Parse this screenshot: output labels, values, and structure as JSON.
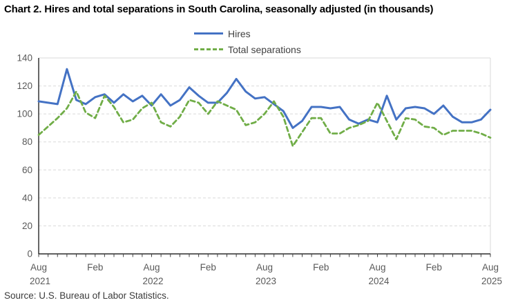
{
  "chart_data": {
    "type": "line",
    "title": "Chart 2. Hires and total separations in South Carolina, seasonally adjusted (in thousands)",
    "source": "Source: U.S. Bureau of Labor Statistics.",
    "ylim": [
      0,
      140
    ],
    "yticks": [
      0,
      20,
      40,
      60,
      80,
      100,
      120,
      140
    ],
    "grid": "horizontal-dashed",
    "legend_position": "top-center",
    "x": [
      "Aug 2021",
      "Sep 2021",
      "Oct 2021",
      "Nov 2021",
      "Dec 2021",
      "Jan 2022",
      "Feb 2022",
      "Mar 2022",
      "Apr 2022",
      "May 2022",
      "Jun 2022",
      "Jul 2022",
      "Aug 2022",
      "Sep 2022",
      "Oct 2022",
      "Nov 2022",
      "Dec 2022",
      "Jan 2023",
      "Feb 2023",
      "Mar 2023",
      "Apr 2023",
      "May 2023",
      "Jun 2023",
      "Jul 2023",
      "Aug 2023",
      "Sep 2023",
      "Oct 2023",
      "Nov 2023",
      "Dec 2023",
      "Jan 2024",
      "Feb 2024",
      "Mar 2024",
      "Apr 2024",
      "May 2024",
      "Jun 2024",
      "Jul 2024",
      "Aug 2024",
      "Sep 2024",
      "Oct 2024",
      "Nov 2024",
      "Dec 2024",
      "Jan 2025",
      "Feb 2025",
      "Mar 2025",
      "Apr 2025",
      "May 2025",
      "Jun 2025",
      "Jul 2025",
      "Aug 2025"
    ],
    "x_ticks_labeled": [
      {
        "month_index": 0,
        "label": "Aug",
        "year": "2021"
      },
      {
        "month_index": 6,
        "label": "Feb",
        "year": ""
      },
      {
        "month_index": 12,
        "label": "Aug",
        "year": "2022"
      },
      {
        "month_index": 18,
        "label": "Feb",
        "year": ""
      },
      {
        "month_index": 24,
        "label": "Aug",
        "year": "2023"
      },
      {
        "month_index": 30,
        "label": "Feb",
        "year": ""
      },
      {
        "month_index": 36,
        "label": "Aug",
        "year": "2024"
      },
      {
        "month_index": 42,
        "label": "Feb",
        "year": ""
      },
      {
        "month_index": 48,
        "label": "Aug",
        "year": "2025"
      }
    ],
    "series": [
      {
        "name": "Hires",
        "color": "#4472C4",
        "line_style": "solid",
        "values": [
          109,
          108,
          107,
          132,
          110,
          107,
          112,
          114,
          108,
          114,
          109,
          113,
          106,
          114,
          106,
          110,
          119,
          113,
          108,
          108,
          115,
          125,
          116,
          111,
          112,
          107,
          102,
          90,
          95,
          105,
          105,
          104,
          105,
          96,
          93,
          96,
          94,
          113,
          96,
          104,
          105,
          104,
          100,
          106,
          98,
          94,
          94,
          96,
          103
        ]
      },
      {
        "name": "Total separations",
        "color": "#70AD47",
        "line_style": "dashed",
        "values": [
          85,
          91,
          97,
          104,
          116,
          101,
          97,
          113,
          105,
          94,
          96,
          104,
          108,
          94,
          91,
          98,
          110,
          108,
          100,
          109,
          106,
          103,
          92,
          94,
          100,
          109,
          98,
          77,
          87,
          97,
          97,
          86,
          86,
          90,
          92,
          95,
          108,
          95,
          82,
          97,
          96,
          91,
          90,
          85,
          88,
          88,
          88,
          86,
          83
        ]
      }
    ],
    "colors": {
      "grid": "#D9D9D9",
      "axis": "#000000",
      "tick": "#404040",
      "tick_label": "#595959"
    }
  }
}
